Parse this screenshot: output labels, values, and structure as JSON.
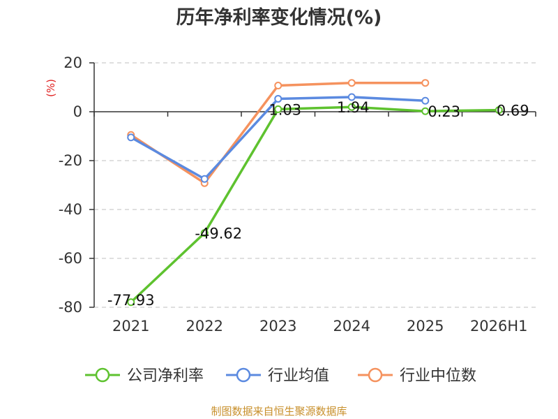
{
  "chart_data": {
    "type": "line",
    "title": "历年净利率变化情况(%)",
    "ylabel": "(%)",
    "categories": [
      "2021",
      "2022",
      "2023",
      "2024",
      "2025",
      "2026H1"
    ],
    "ylim": [
      -80,
      20
    ],
    "yticks": [
      20,
      0,
      -20,
      -40,
      -60,
      -80
    ],
    "grid": true,
    "legend_position": "bottom",
    "series": [
      {
        "name": "公司净利率",
        "color": "#5ec22f",
        "values": [
          -77.93,
          -49.62,
          1.03,
          1.94,
          0.23,
          0.69
        ],
        "labels": [
          "-77.93",
          "-49.62",
          "1.03",
          "1.94",
          "0.23",
          "0.69"
        ]
      },
      {
        "name": "行业均值",
        "color": "#5b8ae0",
        "values": [
          -10.5,
          -27.5,
          5.3,
          6.0,
          4.5,
          null
        ]
      },
      {
        "name": "行业中位数",
        "color": "#f5925e",
        "values": [
          -9.5,
          -29.2,
          10.7,
          11.8,
          11.8,
          null
        ]
      }
    ]
  },
  "source": "制图数据来自恒生聚源数据库"
}
